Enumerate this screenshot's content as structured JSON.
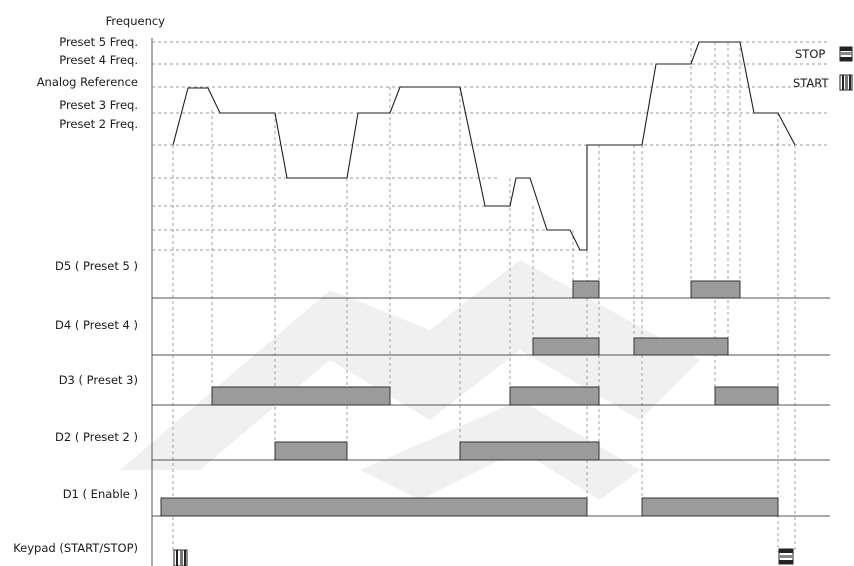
{
  "axis_label": "Frequency",
  "freq_levels": {
    "preset5": "Preset 5 Freq.",
    "preset4": "Preset 4 Freq.",
    "analog": "Analog Reference",
    "preset3": "Preset 3 Freq.",
    "preset2": "Preset 2 Freq."
  },
  "legend": {
    "stop": "STOP",
    "start": "START"
  },
  "rows": {
    "d5": "D5 ( Preset 5 )",
    "d4": "D4 ( Preset 4 )",
    "d3": "D3 ( Preset 3)",
    "d2": "D2 ( Preset 2 )",
    "d1": "D1 ( Enable )",
    "keypad": "Keypad (START/STOP)"
  }
}
